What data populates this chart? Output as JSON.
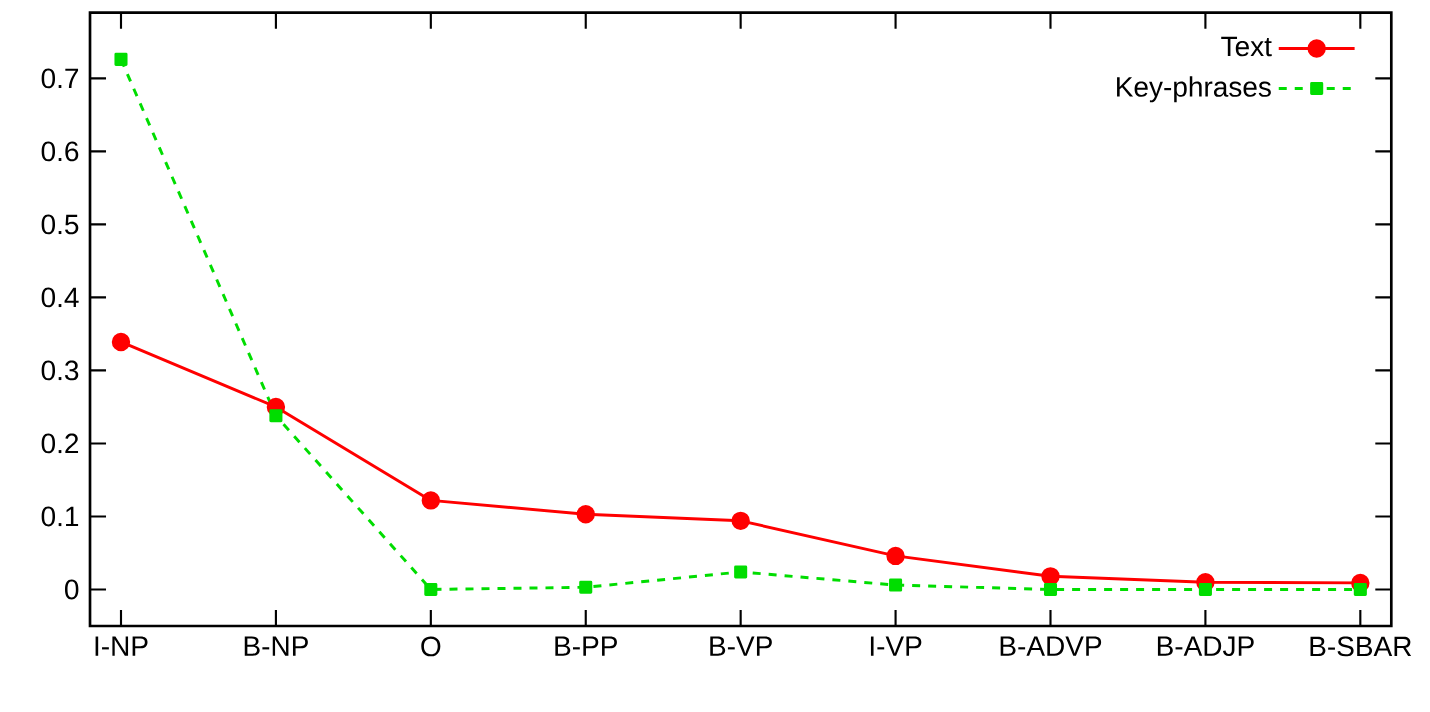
{
  "chart_data": {
    "type": "line",
    "categories": [
      "I-NP",
      "B-NP",
      "O",
      "B-PP",
      "B-VP",
      "I-VP",
      "B-ADVP",
      "B-ADJP",
      "B-SBAR"
    ],
    "series": [
      {
        "name": "Text",
        "color": "#ff0000",
        "marker": "circle",
        "line_style": "solid",
        "values": [
          0.339,
          0.25,
          0.122,
          0.103,
          0.094,
          0.046,
          0.018,
          0.01,
          0.009
        ]
      },
      {
        "name": "Key-phrases",
        "color": "#00dd00",
        "marker": "square",
        "line_style": "dashed",
        "values": [
          0.726,
          0.238,
          0.0,
          0.003,
          0.024,
          0.006,
          0.0,
          0.0,
          0.0
        ]
      }
    ],
    "ylim": [
      -0.05,
      0.79
    ],
    "yticks": [
      0,
      0.1,
      0.2,
      0.3,
      0.4,
      0.5,
      0.6,
      0.7
    ],
    "grid": false,
    "legend": "top right"
  }
}
